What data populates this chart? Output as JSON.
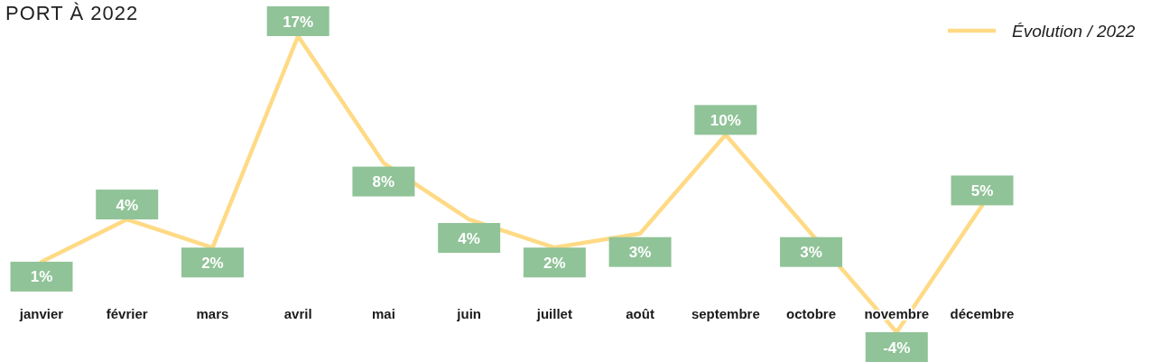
{
  "chart_data": {
    "type": "line",
    "title": "PORT À 2022",
    "categories": [
      "janvier",
      "février",
      "mars",
      "avril",
      "mai",
      "juin",
      "juillet",
      "août",
      "septembre",
      "octobre",
      "novembre",
      "décembre"
    ],
    "series": [
      {
        "name": "Évolution / 2022",
        "color": "#ffda85",
        "values": [
          1,
          4,
          2,
          17,
          8,
          4,
          2,
          3,
          10,
          3,
          -4,
          5
        ],
        "value_labels": [
          "1%",
          "4%",
          "2%",
          "17%",
          "8%",
          "4%",
          "2%",
          "3%",
          "10%",
          "3%",
          "-4%",
          "5%"
        ]
      }
    ],
    "legend": "top right"
  }
}
